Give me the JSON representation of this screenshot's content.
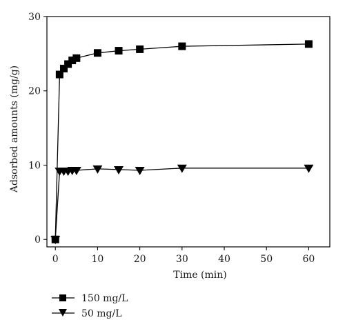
{
  "chart_data": {
    "type": "line",
    "xlabel": "Time (min)",
    "ylabel": "Adsorbed amounts (mg/g)",
    "xlim": [
      -2,
      65
    ],
    "ylim": [
      -1,
      30
    ],
    "xticks": [
      0,
      10,
      20,
      30,
      40,
      50,
      60
    ],
    "yticks": [
      0,
      10,
      20,
      30
    ],
    "grid": false,
    "legend_position": "bottom-left",
    "series": [
      {
        "name": "150 mg/L",
        "marker": "square",
        "color": "#000000",
        "x": [
          0,
          1,
          2,
          3,
          4,
          5,
          10,
          15,
          20,
          30,
          60
        ],
        "y": [
          0,
          22.2,
          23.0,
          23.6,
          24.1,
          24.4,
          25.1,
          25.4,
          25.6,
          26.0,
          26.3
        ]
      },
      {
        "name": "50 mg/L",
        "marker": "triangle-down",
        "color": "#000000",
        "x": [
          0,
          1,
          2,
          3,
          4,
          5,
          10,
          15,
          20,
          30,
          60
        ],
        "y": [
          0,
          9.2,
          9.2,
          9.2,
          9.3,
          9.3,
          9.5,
          9.4,
          9.3,
          9.6,
          9.6
        ]
      }
    ]
  }
}
